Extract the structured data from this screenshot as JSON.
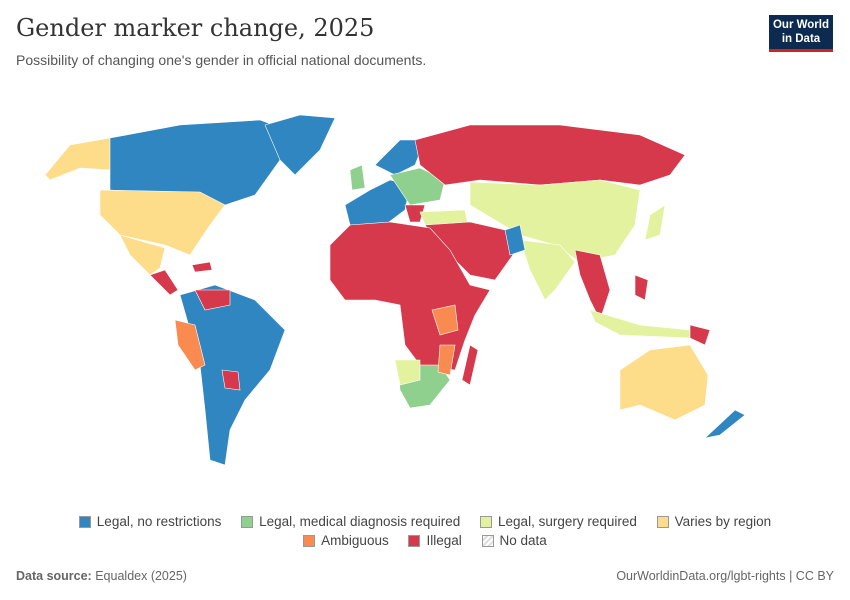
{
  "title": "Gender marker change, 2025",
  "subtitle": "Possibility of changing one's gender in official national documents.",
  "logo": {
    "line1": "Our World",
    "line2": "in Data"
  },
  "legend": [
    {
      "label": "Legal, no restrictions",
      "color": "#2f86c0"
    },
    {
      "label": "Legal, medical diagnosis required",
      "color": "#8fd08e"
    },
    {
      "label": "Legal, surgery required",
      "color": "#e3f29f"
    },
    {
      "label": "Varies by region",
      "color": "#fddc8a"
    },
    {
      "label": "Ambiguous",
      "color": "#f98b51"
    },
    {
      "label": "Illegal",
      "color": "#d6394b"
    },
    {
      "label": "No data",
      "color": "#eeeeee"
    }
  ],
  "footer": {
    "source_label": "Data source:",
    "source": "Equaldex (2025)",
    "link": "OurWorldinData.org/lgbt-rights | CC BY"
  }
}
